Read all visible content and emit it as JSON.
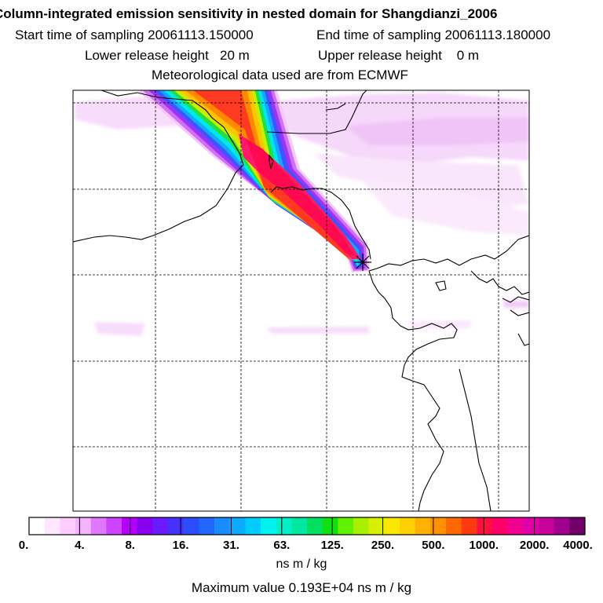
{
  "title": "Column-integrated emission sensitivity in nested domain for Shangdianzi_2006",
  "start_label": "Start time of sampling 20061113.150000",
  "end_label": "End time of sampling 20061113.180000",
  "lower_label": "Lower release height   20 m",
  "upper_label": "Upper release height    0 m",
  "met_label": "Meteorological data used are from ECMWF",
  "colorbar": {
    "ticks": [
      "0.",
      "4.",
      "8.",
      "16.",
      "31.",
      "63.",
      "125.",
      "250.",
      "500.",
      "1000.",
      "2000.",
      "4000."
    ],
    "units": "ns m / kg",
    "colors": [
      "#ffffff",
      "#ffe8ff",
      "#ffccff",
      "#f5b3ff",
      "#e078ff",
      "#cc44ff",
      "#b300ff",
      "#8800ee",
      "#6a1bff",
      "#4632ff",
      "#2b4cff",
      "#2266ff",
      "#1a8cff",
      "#0aaaff",
      "#00ccff",
      "#00f0f0",
      "#00f0c8",
      "#00e8a0",
      "#00e060",
      "#10e010",
      "#60f000",
      "#a8f000",
      "#d8f000",
      "#f8e800",
      "#ffd000",
      "#ffb000",
      "#ff9000",
      "#ff6800",
      "#ff3a10",
      "#ff1040",
      "#ff0068",
      "#f00090",
      "#e000a8",
      "#c8009c",
      "#a00090",
      "#700068"
    ]
  },
  "max_value": "Maximum value  0.193E+04 ns m / kg"
}
